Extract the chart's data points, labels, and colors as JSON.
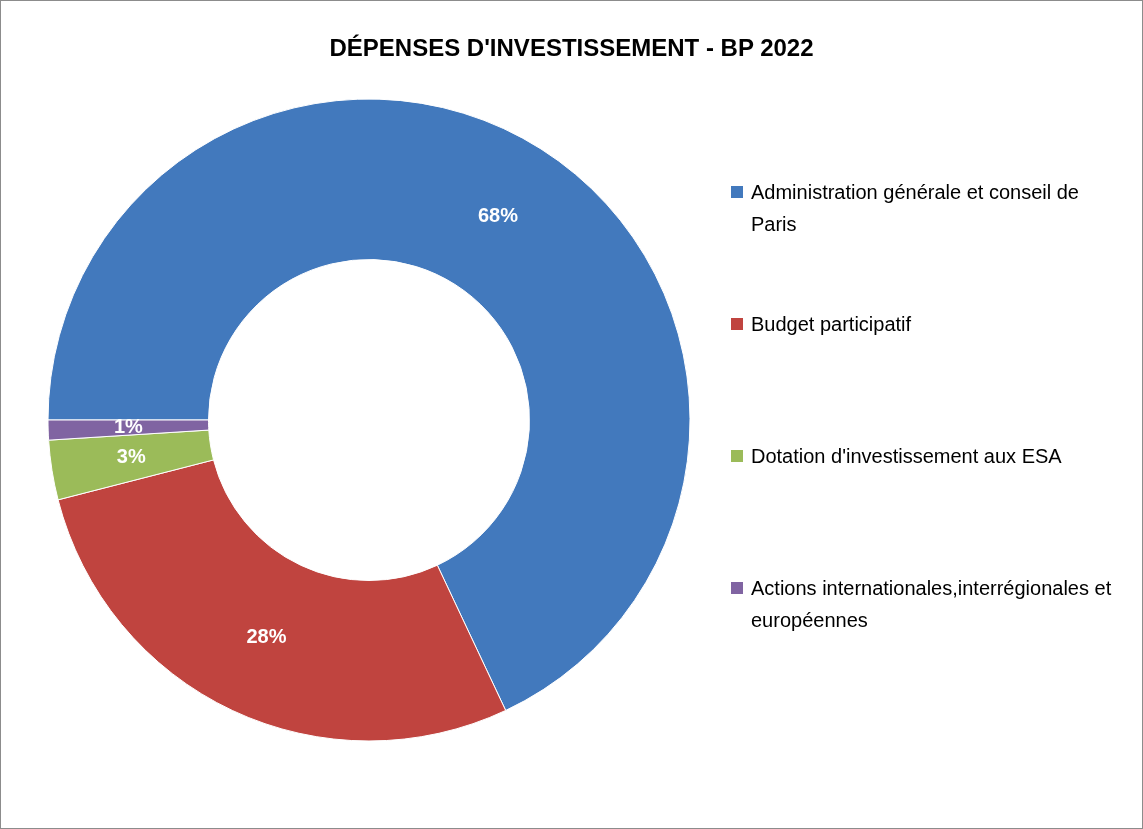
{
  "chart_data": {
    "type": "donut",
    "title": "DÉPENSES D'INVESTISSEMENT - BP 2022",
    "categories": [
      "Administration générale et conseil de Paris",
      "Budget participatif",
      "Dotation d'investissement aux ESA",
      "Actions internationales,interrégionales et européennes"
    ],
    "values": [
      68,
      28,
      3,
      1
    ],
    "colors": [
      "#4279bd",
      "#c0443f",
      "#9bbb59",
      "#8064a2"
    ],
    "value_labels": [
      "68%",
      "28%",
      "3%",
      "1%"
    ],
    "legend": "right"
  }
}
